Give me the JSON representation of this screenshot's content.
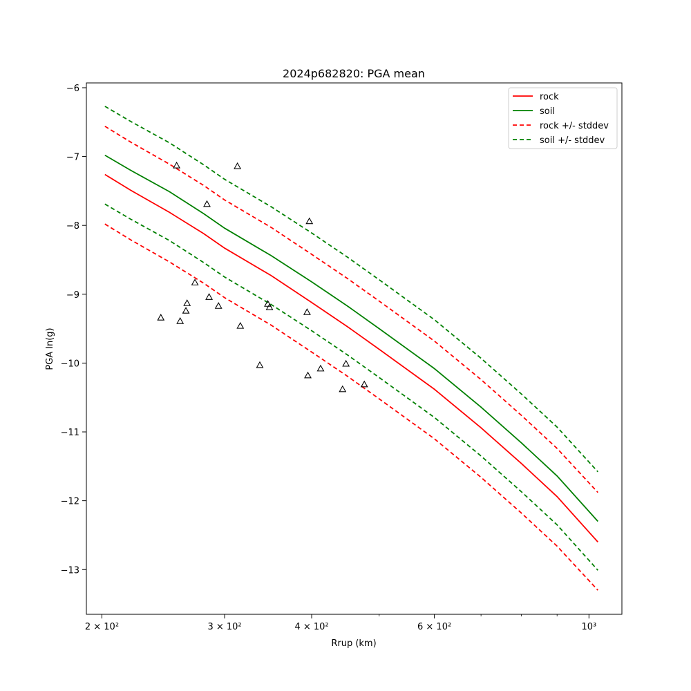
{
  "chart_data": {
    "type": "line",
    "title": "2024p682820: PGA mean",
    "xlabel": "Rrup (km)",
    "ylabel": "PGA ln(g)",
    "x_scale": "log",
    "xlim": [
      190,
      1115
    ],
    "ylim": [
      -13.65,
      -5.93
    ],
    "x_major_ticks": [
      {
        "value": 200,
        "label": "2 × 10²"
      },
      {
        "value": 300,
        "label": "3 × 10²"
      },
      {
        "value": 400,
        "label": "4 × 10²"
      },
      {
        "value": 600,
        "label": "6 × 10²"
      },
      {
        "value": 1000,
        "label": "10³"
      }
    ],
    "x_minor_ticks": [
      500,
      700,
      800,
      900
    ],
    "y_ticks": [
      -6,
      -7,
      -8,
      -9,
      -10,
      -11,
      -12,
      -13
    ],
    "grid": false,
    "legend_position": "top-right",
    "legend": [
      {
        "label": "rock",
        "color": "#ff0000",
        "dash": false
      },
      {
        "label": "soil",
        "color": "#008000",
        "dash": false
      },
      {
        "label": "rock +/- stddev",
        "color": "#ff0000",
        "dash": true
      },
      {
        "label": "soil +/- stddev",
        "color": "#008000",
        "dash": true
      }
    ],
    "curve_x": [
      202,
      220,
      250,
      280,
      300,
      350,
      400,
      450,
      500,
      600,
      700,
      800,
      900,
      1030
    ],
    "series": [
      {
        "name": "rock",
        "color": "#ff0000",
        "dash": false,
        "values": [
          -7.26,
          -7.49,
          -7.81,
          -8.12,
          -8.33,
          -8.73,
          -9.12,
          -9.47,
          -9.8,
          -10.38,
          -10.94,
          -11.46,
          -11.94,
          -12.6
        ]
      },
      {
        "name": "soil",
        "color": "#008000",
        "dash": false,
        "values": [
          -6.98,
          -7.2,
          -7.51,
          -7.83,
          -8.04,
          -8.44,
          -8.82,
          -9.17,
          -9.5,
          -10.08,
          -10.64,
          -11.16,
          -11.64,
          -12.3
        ]
      },
      {
        "name": "rock +/- stddev",
        "color": "#ff0000",
        "dash": true,
        "values": [
          -6.56,
          -6.79,
          -7.11,
          -7.42,
          -7.63,
          -8.03,
          -8.42,
          -8.77,
          -9.1,
          -9.68,
          -10.24,
          -10.76,
          -11.24,
          -11.88
        ]
      },
      {
        "name": "rock +/- stddev",
        "color": "#ff0000",
        "dash": true,
        "values": [
          -7.98,
          -8.21,
          -8.53,
          -8.84,
          -9.05,
          -9.45,
          -9.84,
          -10.19,
          -10.52,
          -11.1,
          -11.66,
          -12.18,
          -12.66,
          -13.3
        ]
      },
      {
        "name": "soil +/- stddev",
        "color": "#008000",
        "dash": true,
        "values": [
          -6.27,
          -6.49,
          -6.8,
          -7.12,
          -7.33,
          -7.73,
          -8.11,
          -8.46,
          -8.79,
          -9.37,
          -9.93,
          -10.45,
          -10.93,
          -11.58
        ]
      },
      {
        "name": "soil +/- stddev",
        "color": "#008000",
        "dash": true,
        "values": [
          -7.69,
          -7.91,
          -8.22,
          -8.54,
          -8.75,
          -9.15,
          -9.53,
          -9.88,
          -10.21,
          -10.79,
          -11.35,
          -11.87,
          -12.35,
          -13.01
        ]
      }
    ],
    "observations": {
      "marker": "triangle",
      "color": "#000000",
      "points": [
        {
          "x": 243,
          "y": -9.34
        },
        {
          "x": 256,
          "y": -7.13
        },
        {
          "x": 259,
          "y": -9.39
        },
        {
          "x": 264,
          "y": -9.24
        },
        {
          "x": 265,
          "y": -9.13
        },
        {
          "x": 272,
          "y": -8.83
        },
        {
          "x": 283,
          "y": -7.69
        },
        {
          "x": 285,
          "y": -9.04
        },
        {
          "x": 294,
          "y": -9.17
        },
        {
          "x": 313,
          "y": -7.14
        },
        {
          "x": 316,
          "y": -9.46
        },
        {
          "x": 337,
          "y": -10.03
        },
        {
          "x": 346,
          "y": -9.14
        },
        {
          "x": 348,
          "y": -9.19
        },
        {
          "x": 394,
          "y": -9.26
        },
        {
          "x": 395,
          "y": -10.18
        },
        {
          "x": 397,
          "y": -7.94
        },
        {
          "x": 412,
          "y": -10.08
        },
        {
          "x": 443,
          "y": -10.38
        },
        {
          "x": 448,
          "y": -10.01
        },
        {
          "x": 476,
          "y": -10.31
        }
      ]
    }
  }
}
